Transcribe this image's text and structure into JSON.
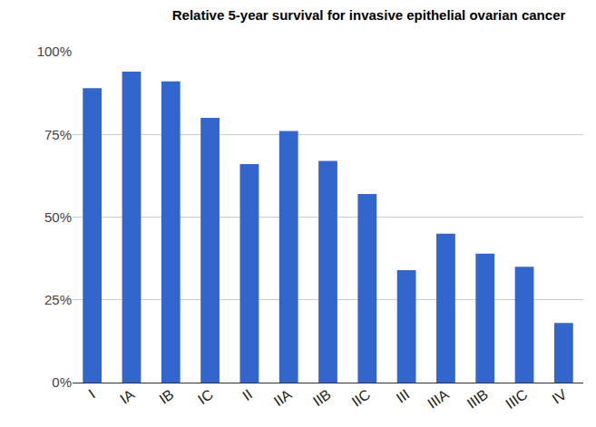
{
  "chart_data": {
    "type": "bar",
    "title": "Relative 5-year survival for invasive epithelial ovarian cancer",
    "categories": [
      "I",
      "IA",
      "IB",
      "IC",
      "II",
      "IIA",
      "IIB",
      "IIC",
      "III",
      "IIIA",
      "IIIB",
      "IIIC",
      "IV"
    ],
    "values": [
      89,
      94,
      91,
      80,
      66,
      76,
      67,
      57,
      34,
      45,
      39,
      35,
      18
    ],
    "color": "#3366cc",
    "ylim": [
      0,
      100
    ],
    "yticks": [
      {
        "value": 0,
        "label": "0%"
      },
      {
        "value": 25,
        "label": "25%"
      },
      {
        "value": 50,
        "label": "50%"
      },
      {
        "value": 75,
        "label": "75%"
      },
      {
        "value": 100,
        "label": "100%"
      }
    ],
    "grid": true
  }
}
